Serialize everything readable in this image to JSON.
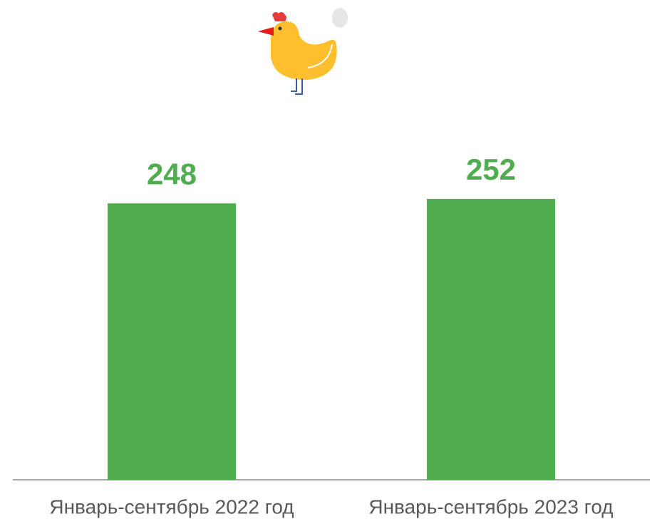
{
  "chart_data": {
    "type": "bar",
    "categories": [
      "Январь-сентябрь 2022 год",
      "Январь-сентябрь 2023 год"
    ],
    "values": [
      248,
      252
    ],
    "color": "#50ad50"
  }
}
